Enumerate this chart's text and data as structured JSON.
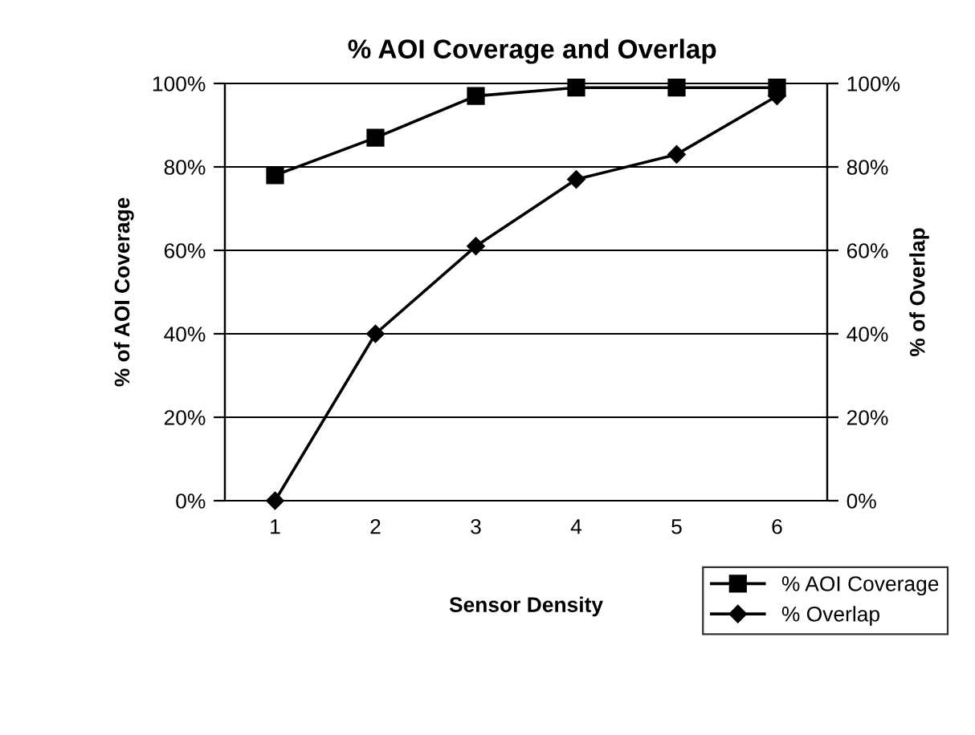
{
  "chart_data": {
    "type": "line",
    "title": "% AOI Coverage and Overlap",
    "xlabel": "Sensor Density",
    "ylabel": "% of AOI Coverage",
    "y2label": "% of Overlap",
    "categories": [
      "1",
      "2",
      "3",
      "4",
      "5",
      "6"
    ],
    "series": [
      {
        "name": "% AOI Coverage",
        "color": "#000000",
        "marker": "square",
        "values": [
          78,
          87,
          97,
          99,
          99,
          99
        ]
      },
      {
        "name": "% Overlap",
        "color": "#000000",
        "marker": "diamond",
        "axis": "y2",
        "values": [
          0,
          40,
          61,
          77,
          83,
          97
        ]
      }
    ],
    "ylim": [
      0,
      100
    ],
    "yticks": [
      {
        "value": 0,
        "label": "0%"
      },
      {
        "value": 20,
        "label": "20%"
      },
      {
        "value": 40,
        "label": "40%"
      },
      {
        "value": 60,
        "label": "60%"
      },
      {
        "value": 80,
        "label": "80%"
      },
      {
        "value": 100,
        "label": "100%"
      }
    ],
    "y2lim": [
      0,
      100
    ],
    "y2ticks": [
      {
        "value": 0,
        "label": "0%"
      },
      {
        "value": 20,
        "label": "20%"
      },
      {
        "value": 40,
        "label": "40%"
      },
      {
        "value": 60,
        "label": "60%"
      },
      {
        "value": 80,
        "label": "80%"
      },
      {
        "value": 100,
        "label": "100%"
      }
    ],
    "grid": "y",
    "legend": "bottom right",
    "line_style": "solid"
  }
}
